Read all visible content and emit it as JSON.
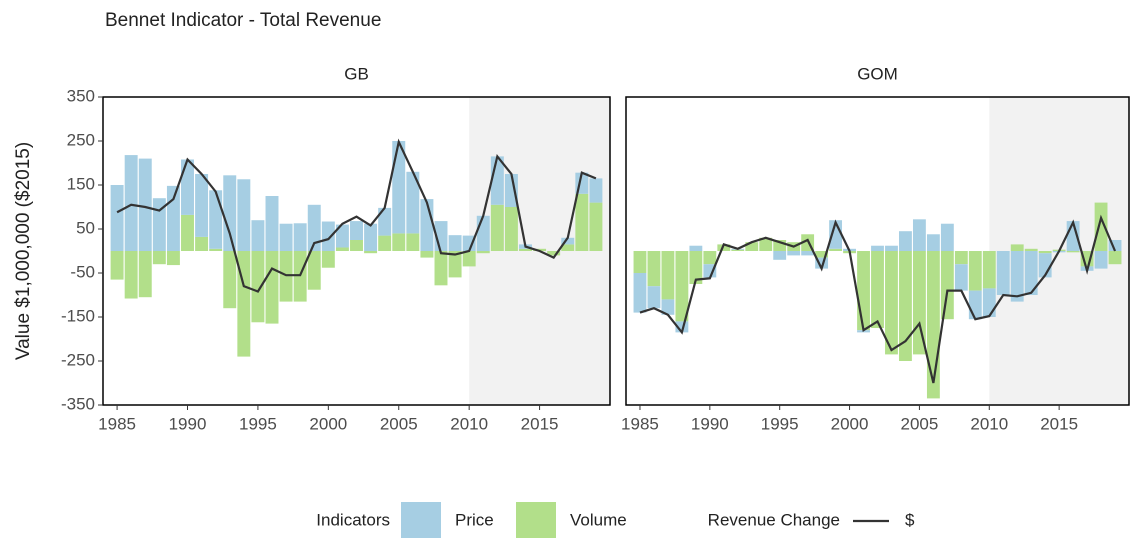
{
  "title": "Bennet Indicator - Total Revenue",
  "y_label": "Value $1,000,000 ($2015)",
  "legend": {
    "bar_title": "Indicators",
    "line_title": "Revenue Change"
  },
  "chart_data": [
    {
      "type": "bar",
      "title": "GB",
      "x": [
        1985,
        1986,
        1987,
        1988,
        1989,
        1990,
        1991,
        1992,
        1993,
        1994,
        1995,
        1996,
        1997,
        1998,
        1999,
        2000,
        2001,
        2002,
        2003,
        2004,
        2005,
        2006,
        2007,
        2008,
        2009,
        2010,
        2011,
        2012,
        2013,
        2014,
        2015,
        2016,
        2017,
        2018,
        2019
      ],
      "series": [
        {
          "name": "Price",
          "color": "#a6cee3",
          "values": [
            150,
            218,
            210,
            120,
            148,
            126,
            143,
            133,
            172,
            163,
            70,
            125,
            62,
            63,
            105,
            67,
            52,
            43,
            62,
            63,
            210,
            140,
            118,
            68,
            36,
            35,
            80,
            110,
            75,
            10,
            0,
            0,
            15,
            48,
            55
          ]
        },
        {
          "name": "Volume",
          "color": "#b2df8a",
          "values": [
            -65,
            -108,
            -105,
            -30,
            -32,
            82,
            32,
            5,
            -130,
            -240,
            -162,
            -165,
            -115,
            -115,
            -88,
            -38,
            8,
            25,
            -5,
            35,
            40,
            40,
            -15,
            -78,
            -60,
            -35,
            -5,
            105,
            100,
            5,
            5,
            -10,
            15,
            130,
            110
          ]
        },
        {
          "name": "$",
          "type": "line",
          "color": "#333333",
          "values": [
            88,
            105,
            100,
            92,
            118,
            208,
            175,
            135,
            40,
            -80,
            -92,
            -40,
            -55,
            -55,
            18,
            27,
            62,
            78,
            58,
            98,
            248,
            180,
            110,
            -5,
            -8,
            0,
            80,
            215,
            175,
            10,
            0,
            -15,
            30,
            178,
            165
          ]
        }
      ],
      "xlim": [
        1984,
        2020
      ],
      "xticks": [
        1985,
        1990,
        1995,
        2000,
        2005,
        2010,
        2015
      ],
      "ylim": [
        -350,
        350
      ],
      "yticks": [
        -350,
        -250,
        -150,
        -50,
        50,
        150,
        250,
        350
      ],
      "shaded_from": 2010
    },
    {
      "type": "bar",
      "title": "GOM",
      "x": [
        1985,
        1986,
        1987,
        1988,
        1989,
        1990,
        1991,
        1992,
        1993,
        1994,
        1995,
        1996,
        1997,
        1998,
        1999,
        2000,
        2001,
        2002,
        2003,
        2004,
        2005,
        2006,
        2007,
        2008,
        2009,
        2010,
        2011,
        2012,
        2013,
        2014,
        2015,
        2016,
        2017,
        2018,
        2019
      ],
      "series": [
        {
          "color": "#a6cee3",
          "values": [
            -90,
            -50,
            -35,
            -25,
            12,
            -30,
            0,
            2,
            0,
            0,
            -20,
            -10,
            -10,
            -25,
            65,
            5,
            -5,
            12,
            12,
            45,
            72,
            38,
            62,
            -60,
            -65,
            -65,
            -100,
            -115,
            -100,
            -55,
            -3,
            68,
            -10,
            -40,
            25
          ]
        },
        {
          "color": "#b2df8a",
          "values": [
            -50,
            -80,
            -110,
            -160,
            -75,
            -30,
            15,
            3,
            20,
            30,
            25,
            20,
            38,
            -15,
            5,
            -5,
            -180,
            -175,
            -235,
            -250,
            -235,
            -335,
            -155,
            -30,
            -90,
            -85,
            0,
            15,
            5,
            -5,
            3,
            -3,
            -35,
            110,
            -30
          ]
        },
        {
          "type": "line",
          "color": "#333333",
          "values": [
            -140,
            -130,
            -145,
            -185,
            -65,
            -62,
            15,
            5,
            20,
            30,
            20,
            10,
            25,
            -40,
            65,
            0,
            -180,
            -160,
            -225,
            -205,
            -165,
            -300,
            -90,
            -90,
            -155,
            -148,
            -100,
            -103,
            -95,
            -55,
            0,
            65,
            -45,
            75,
            0
          ]
        }
      ],
      "xlim": [
        1984,
        2020
      ],
      "xticks": [
        1985,
        1990,
        1995,
        2000,
        2005,
        2010,
        2015
      ],
      "ylim": [
        -350,
        350
      ],
      "shaded_from": 2010
    }
  ]
}
